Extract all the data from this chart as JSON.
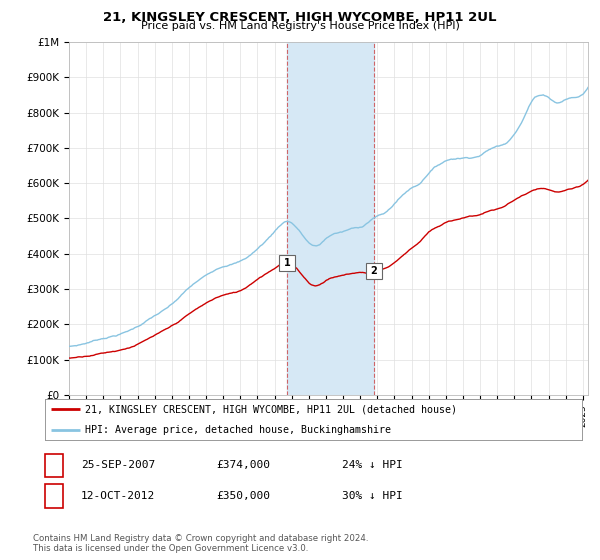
{
  "title": "21, KINGSLEY CRESCENT, HIGH WYCOMBE, HP11 2UL",
  "subtitle": "Price paid vs. HM Land Registry's House Price Index (HPI)",
  "hpi_color": "#89c4e1",
  "price_color": "#cc0000",
  "highlight_color": "#d6e8f5",
  "background_color": "#ffffff",
  "grid_color": "#e0e0e0",
  "ylim": [
    0,
    1000000
  ],
  "yticks": [
    0,
    100000,
    200000,
    300000,
    400000,
    500000,
    600000,
    700000,
    800000,
    900000,
    1000000
  ],
  "ytick_labels": [
    "£0",
    "£100K",
    "£200K",
    "£300K",
    "£400K",
    "£500K",
    "£600K",
    "£700K",
    "£800K",
    "£900K",
    "£1M"
  ],
  "legend_line1": "21, KINGSLEY CRESCENT, HIGH WYCOMBE, HP11 2UL (detached house)",
  "legend_line2": "HPI: Average price, detached house, Buckinghamshire",
  "transaction1_date": "25-SEP-2007",
  "transaction1_price": 374000,
  "transaction1_label": "1",
  "transaction1_hpi": "24% ↓ HPI",
  "transaction2_date": "12-OCT-2012",
  "transaction2_price": 350000,
  "transaction2_label": "2",
  "transaction2_hpi": "30% ↓ HPI",
  "footnote": "Contains HM Land Registry data © Crown copyright and database right 2024.\nThis data is licensed under the Open Government Licence v3.0.",
  "highlight_start_year": 2007.72,
  "highlight_end_year": 2012.78,
  "marker1_year": 2007.72,
  "marker2_year": 2012.78,
  "xmin": 1995,
  "xmax": 2025.3
}
